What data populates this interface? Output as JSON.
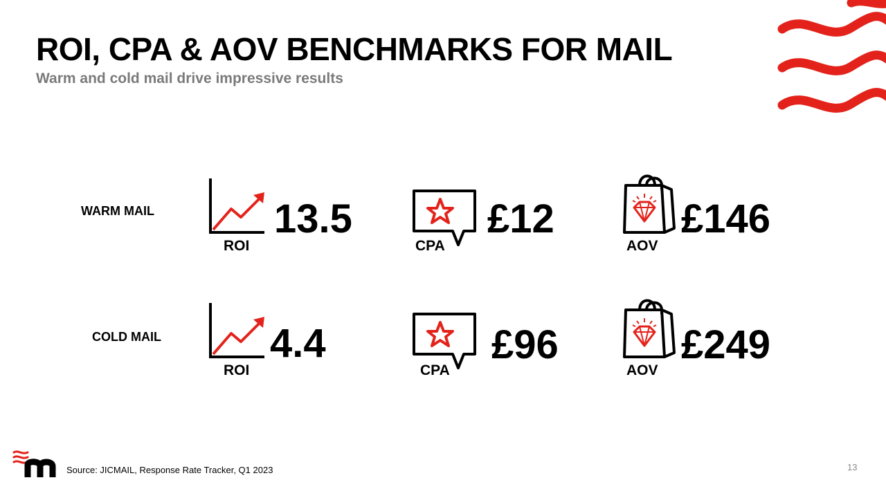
{
  "slide": {
    "title": "ROI, CPA & AOV BENCHMARKS FOR MAIL",
    "subtitle": "Warm and cold mail drive impressive results",
    "source": "Source: JICMAIL, Response Rate Tracker, Q1 2023",
    "page_number": "13"
  },
  "colors": {
    "accent": "#e3231b",
    "text": "#000000",
    "subtitle": "#7a7a7a"
  },
  "rows": [
    {
      "label": "WARM MAIL",
      "metrics": [
        {
          "caption": "ROI",
          "value": "13.5",
          "icon": "trend-chart-icon"
        },
        {
          "caption": "CPA",
          "value": "£12",
          "icon": "star-speech-bubble-icon"
        },
        {
          "caption": "AOV",
          "value": "£146",
          "icon": "shopping-bag-diamond-icon"
        }
      ]
    },
    {
      "label": "COLD MAIL",
      "metrics": [
        {
          "caption": "ROI",
          "value": "4.4",
          "icon": "trend-chart-icon"
        },
        {
          "caption": "CPA",
          "value": "£96",
          "icon": "star-speech-bubble-icon"
        },
        {
          "caption": "AOV",
          "value": "£249",
          "icon": "shopping-bag-diamond-icon"
        }
      ]
    }
  ]
}
